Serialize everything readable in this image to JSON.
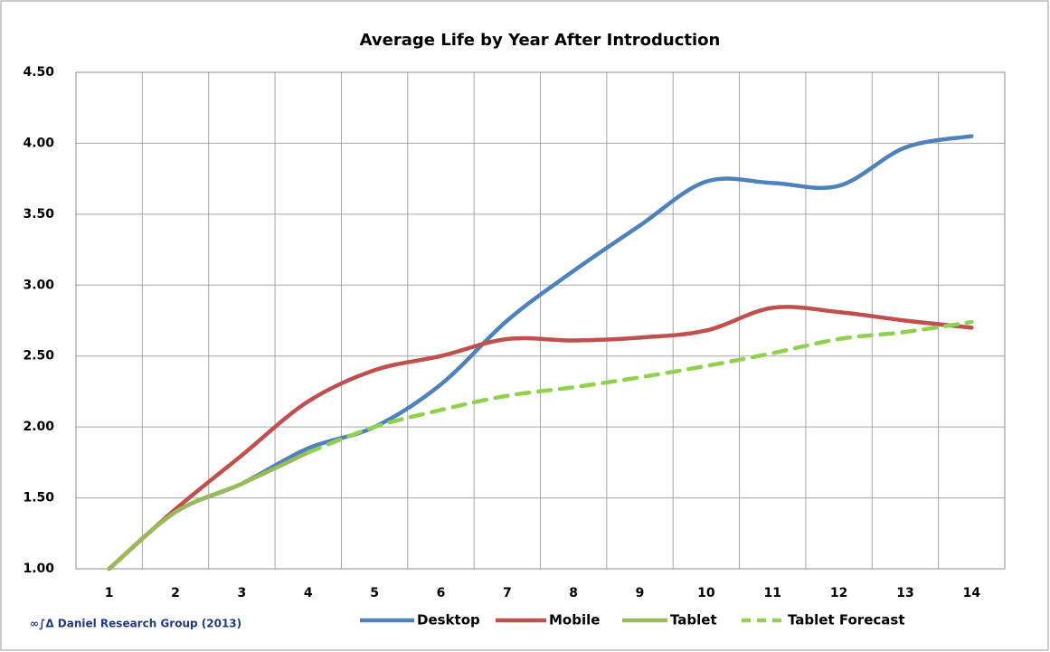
{
  "chart_data": {
    "type": "line",
    "title": "Average  Life by Year After Introduction",
    "annotation": "∞∫Δ Daniel Research Group (2013)",
    "categories": [
      "1",
      "2",
      "3",
      "4",
      "5",
      "6",
      "7",
      "8",
      "9",
      "10",
      "11",
      "12",
      "13",
      "14"
    ],
    "ylim": [
      1.0,
      4.5
    ],
    "yticks": [
      {
        "value": 1.0,
        "label": "1.00"
      },
      {
        "value": 1.5,
        "label": "1.50"
      },
      {
        "value": 2.0,
        "label": "2.00"
      },
      {
        "value": 2.5,
        "label": "2.50"
      },
      {
        "value": 3.0,
        "label": "3.00"
      },
      {
        "value": 3.5,
        "label": "3.50"
      },
      {
        "value": 4.0,
        "label": "4.00"
      },
      {
        "value": 4.5,
        "label": "4.50"
      }
    ],
    "grid": true,
    "series": [
      {
        "name": "Desktop",
        "color": "#4f81bd",
        "dashed": false,
        "values": [
          1.0,
          1.4,
          1.6,
          1.85,
          2.0,
          2.3,
          2.75,
          3.1,
          3.42,
          3.73,
          3.72,
          3.7,
          3.97,
          4.05
        ]
      },
      {
        "name": "Mobile",
        "color": "#c0504d",
        "dashed": false,
        "values": [
          1.0,
          1.42,
          1.8,
          2.18,
          2.4,
          2.5,
          2.62,
          2.61,
          2.63,
          2.68,
          2.84,
          2.81,
          2.75,
          2.7
        ]
      },
      {
        "name": "Tablet",
        "color": "#9bbb59",
        "dashed": false,
        "values": [
          1.0,
          1.4,
          1.6,
          1.82,
          null,
          null,
          null,
          null,
          null,
          null,
          null,
          null,
          null,
          null
        ]
      },
      {
        "name": "Tablet Forecast",
        "color": "#92d050",
        "dashed": true,
        "values": [
          null,
          null,
          null,
          1.82,
          2.0,
          2.12,
          2.22,
          2.28,
          2.35,
          2.43,
          2.52,
          2.62,
          2.67,
          2.74
        ]
      }
    ]
  }
}
